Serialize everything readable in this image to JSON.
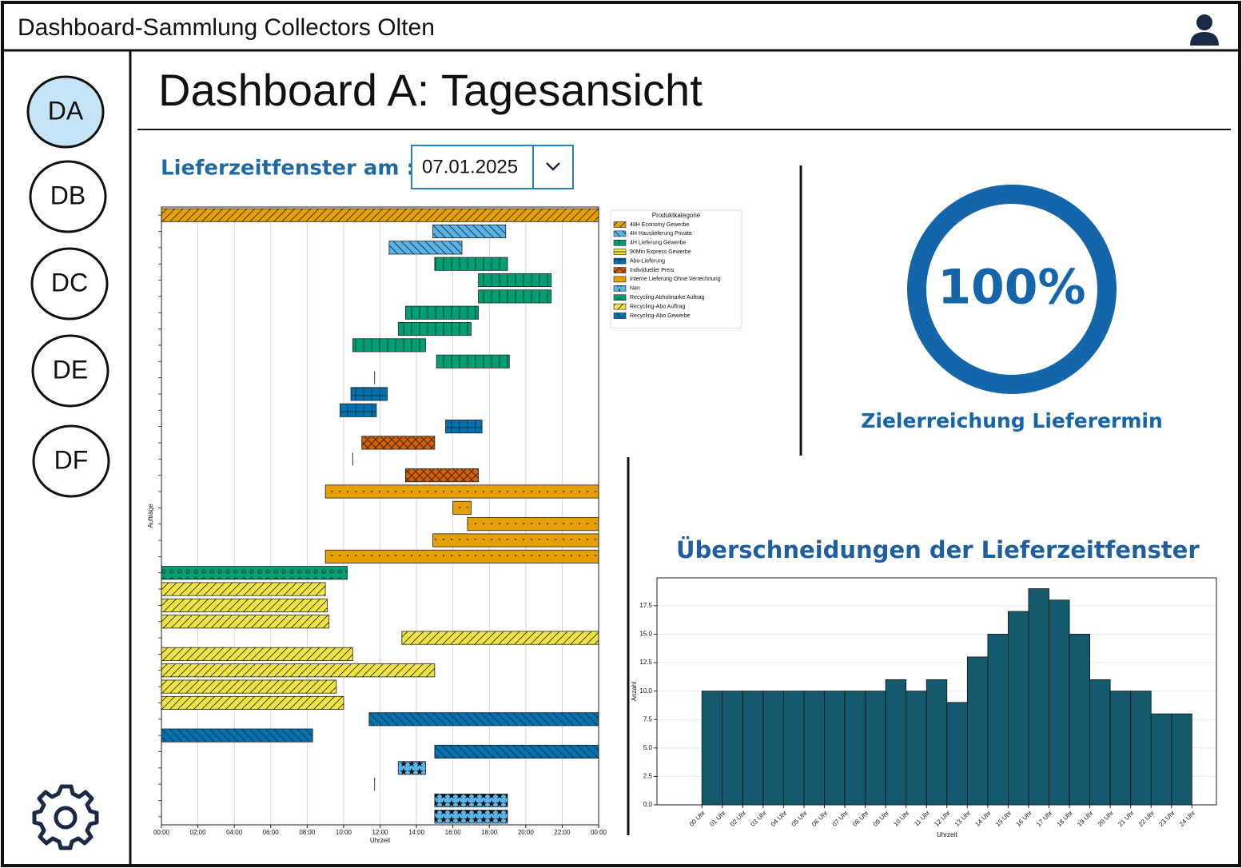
{
  "header": {
    "title": "Dashboard-Sammlung Collectors Olten"
  },
  "nav": [
    "DA",
    "DB",
    "DC",
    "DE",
    "DF"
  ],
  "page_title": "Dashboard A: Tagesansicht",
  "date_label": "Lieferzeitfenster am :",
  "date_value": "07.01.2025",
  "gauge": {
    "value": 100,
    "label": "100%",
    "caption": "Zielerreichung Lieferermin",
    "color": "#1565ab"
  },
  "histogram_title": "Überschneidungen der Lieferzeitfenster",
  "chart_data": [
    {
      "type": "gantt",
      "xlabel": "Uhrzeit",
      "ylabel": "Aufträge",
      "legend_title": "Produktkategorie",
      "legend": "upper right outside",
      "grid": true,
      "xlim": [
        0,
        24
      ],
      "xticks": [
        {
          "value": 0,
          "label": "00:00"
        },
        {
          "value": 2,
          "label": "02:00"
        },
        {
          "value": 4,
          "label": "04:00"
        },
        {
          "value": 6,
          "label": "06:00"
        },
        {
          "value": 8,
          "label": "08:00"
        },
        {
          "value": 10,
          "label": "10:00"
        },
        {
          "value": 12,
          "label": "12:00"
        },
        {
          "value": 14,
          "label": "14:00"
        },
        {
          "value": 16,
          "label": "16:00"
        },
        {
          "value": 18,
          "label": "18:00"
        },
        {
          "value": 20,
          "label": "20:00"
        },
        {
          "value": 22,
          "label": "22:00"
        },
        {
          "value": 24,
          "label": "00:00"
        }
      ],
      "ylim": [
        37.5,
        -0.5
      ],
      "yticks": [
        0,
        1,
        2,
        3,
        4,
        5,
        6,
        7,
        8,
        9,
        10,
        11,
        12,
        13,
        14,
        15,
        16,
        17,
        18,
        19,
        20,
        21,
        22,
        23,
        24,
        25,
        26,
        27,
        28,
        29,
        30,
        31,
        32,
        33,
        34,
        35,
        36,
        37
      ],
      "series": [
        {
          "name": "48H Economy Gewerbe",
          "color": "#e69f00",
          "hatch": "/",
          "y": [
            0
          ],
          "start": [
            0
          ],
          "end": [
            24
          ]
        },
        {
          "name": "4H Hauslieferung Private",
          "color": "#56b4e9",
          "hatch": "\\",
          "y": [
            1,
            2
          ],
          "start": [
            14.9,
            12.5
          ],
          "end": [
            18.9,
            16.5
          ]
        },
        {
          "name": "4H Lieferung Gewerbe",
          "color": "#009e73",
          "hatch": "|",
          "y": [
            3,
            4,
            5,
            6,
            7,
            8,
            9
          ],
          "start": [
            15.0,
            17.4,
            17.4,
            13.4,
            13.0,
            10.5,
            15.1
          ],
          "end": [
            19.0,
            21.4,
            21.4,
            17.4,
            17.0,
            14.5,
            19.1
          ]
        },
        {
          "name": "90Min Express Gewerbe",
          "color": "#f0e442",
          "hatch": "-",
          "y": [
            10
          ],
          "start": [
            11.7
          ],
          "end": [
            11.7
          ]
        },
        {
          "name": "Abo-Lieferung",
          "color": "#0072b2",
          "hatch": "+",
          "y": [
            11,
            12,
            13
          ],
          "start": [
            10.4,
            9.8,
            15.6
          ],
          "end": [
            12.4,
            11.8,
            17.6
          ]
        },
        {
          "name": "Individueller Preis",
          "color": "#d55e00",
          "hatch": "x",
          "y": [
            14,
            15,
            16
          ],
          "start": [
            11.0,
            10.5,
            13.4
          ],
          "end": [
            15.0,
            10.5,
            17.4
          ]
        },
        {
          "name": "Interne Lieferung Ohne Verrechnung",
          "color": "#e69f00",
          "hatch": ".",
          "y": [
            17,
            18,
            19,
            20,
            21
          ],
          "start": [
            9.0,
            16.0,
            16.8,
            14.9,
            9.0
          ],
          "end": [
            24,
            17.0,
            24,
            24,
            24
          ]
        },
        {
          "name": "Nan",
          "color": "#56b4e9",
          "hatch": "*",
          "y": [
            34,
            35,
            36,
            37
          ],
          "start": [
            13.0,
            11.7,
            15.0,
            15.0
          ],
          "end": [
            14.5,
            11.7,
            19.0,
            19.0
          ]
        },
        {
          "name": "Recycling Abholmarke Auftrag",
          "color": "#009e73",
          "hatch": "o",
          "y": [
            22
          ],
          "start": [
            0
          ],
          "end": [
            10.2
          ]
        },
        {
          "name": "Recycling-Abo Auftrag",
          "color": "#f0e442",
          "hatch": "/",
          "y": [
            23,
            24,
            25,
            26,
            27,
            28,
            29,
            30
          ],
          "start": [
            0,
            0,
            0,
            13.2,
            0,
            0,
            0,
            0
          ],
          "end": [
            9.0,
            9.1,
            9.2,
            24,
            10.5,
            15.0,
            9.6,
            10.0
          ]
        },
        {
          "name": "Recycling-Abo Gewerbe",
          "color": "#0072b2",
          "hatch": "\\",
          "y": [
            31,
            32,
            33
          ],
          "start": [
            11.4,
            0,
            15.0
          ],
          "end": [
            24,
            8.3,
            24
          ]
        }
      ]
    },
    {
      "type": "histogram",
      "xlabel": "Uhrzeit",
      "ylabel": "Anzahl",
      "color": "#135a6e",
      "grid": true,
      "bins": [
        0,
        1,
        2,
        3,
        4,
        5,
        6,
        7,
        8,
        9,
        10,
        11,
        12,
        13,
        14,
        15,
        16,
        17,
        18,
        19,
        20,
        21,
        22,
        23,
        24
      ],
      "counts": [
        10,
        10,
        10,
        10,
        10,
        10,
        10,
        10,
        10,
        11,
        10,
        11,
        9,
        13,
        15,
        17,
        19,
        18,
        15,
        11,
        10,
        10,
        8,
        8
      ],
      "xlim": [
        -2.2,
        25.2
      ],
      "xticks": [
        {
          "value": 0,
          "label": "00 Uhr"
        },
        {
          "value": 1,
          "label": "01 Uhr"
        },
        {
          "value": 2,
          "label": "02 Uhr"
        },
        {
          "value": 3,
          "label": "03 Uhr"
        },
        {
          "value": 4,
          "label": "04 Uhr"
        },
        {
          "value": 5,
          "label": "05 Uhr"
        },
        {
          "value": 6,
          "label": "06 Uhr"
        },
        {
          "value": 7,
          "label": "07 Uhr"
        },
        {
          "value": 8,
          "label": "08 Uhr"
        },
        {
          "value": 9,
          "label": "09 Uhr"
        },
        {
          "value": 10,
          "label": "10 Uhr"
        },
        {
          "value": 11,
          "label": "11 Uhr"
        },
        {
          "value": 12,
          "label": "12 Uhr"
        },
        {
          "value": 13,
          "label": "13 Uhr"
        },
        {
          "value": 14,
          "label": "14 Uhr"
        },
        {
          "value": 15,
          "label": "15 Uhr"
        },
        {
          "value": 16,
          "label": "16 Uhr"
        },
        {
          "value": 17,
          "label": "17 Uhr"
        },
        {
          "value": 18,
          "label": "18 Uhr"
        },
        {
          "value": 19,
          "label": "19 Uhr"
        },
        {
          "value": 20,
          "label": "20 Uhr"
        },
        {
          "value": 21,
          "label": "21 Uhr"
        },
        {
          "value": 22,
          "label": "22 Uhr"
        },
        {
          "value": 23,
          "label": "23 Uhr"
        },
        {
          "value": 24,
          "label": "24 Uhr"
        }
      ],
      "ylim": [
        0,
        19.95
      ],
      "yticks": [
        {
          "value": 0,
          "label": "0.0"
        },
        2.5,
        {
          "value": 5,
          "label": "5.0"
        },
        7.5,
        {
          "value": 10,
          "label": "10.0"
        },
        12.5,
        {
          "value": 15,
          "label": "15.0"
        },
        17.5
      ]
    }
  ]
}
